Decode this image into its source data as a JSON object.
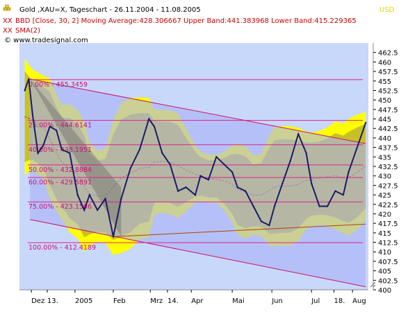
{
  "header": {
    "line1_icon": "gold-bars-icon",
    "line1": "Gold ,XAU=X, Tageschart - 26.11.2004 - 11.08.2005",
    "line2_icon": "indicator-x-icon",
    "line2": "BBD [Close, 30, 2] Moving Average:428.306667 Upper Band:441.383968 Lower Band:415.229365",
    "line3_icon": "indicator-x-icon",
    "line3": "SMA(2)",
    "line4": "© www.tradesignal.com",
    "currency": "USD"
  },
  "colors": {
    "plot_bg": "#c8d8fa",
    "channel_fill": "#a9b1f6",
    "band_fill": "#c8c02a",
    "band_outer": "#ffff00",
    "price_line": "#1a1a66",
    "fib_line": "#dd2288",
    "fib_text": "#cc1177",
    "header_red": "#cc0000",
    "usd": "#d8d800",
    "ma_line": "#993322"
  },
  "chart_data": {
    "type": "line",
    "title": "Gold ,XAU=X, Tageschart - 26.11.2004 - 11.08.2005",
    "ylabel": "USD",
    "ylim": [
      400,
      465
    ],
    "yticks": [
      400,
      402.5,
      405,
      407.5,
      410,
      412.5,
      415,
      417.5,
      420,
      422.5,
      425,
      427.5,
      430,
      432.5,
      435,
      437.5,
      440,
      442.5,
      445,
      447.5,
      450,
      452.5,
      455,
      457.5,
      460,
      462.5
    ],
    "xlabels": [
      "Dez",
      "13.",
      "2005",
      "Feb",
      "Mrz",
      "14.",
      "Apr",
      "Mai",
      "Jun",
      "Jul",
      "18.",
      "Aug"
    ],
    "fib_levels": [
      {
        "label": "0.00% - 455.3459",
        "value": 455.3459
      },
      {
        "label": "25.00% - 444.6141",
        "value": 444.6141
      },
      {
        "label": "40.00% - 438.1951",
        "value": 438.1951
      },
      {
        "label": "50.00% - 432.8884",
        "value": 432.8884
      },
      {
        "label": "60.00% - 429.5891",
        "value": 429.5891
      },
      {
        "label": "75.00% - 423.1506",
        "value": 423.1506
      },
      {
        "label": "100.00% - 412.4189",
        "value": 412.4189
      }
    ],
    "series": [
      {
        "name": "Close",
        "x": [
          "2004-11-26",
          "2004-11-29",
          "2004-12-02",
          "2004-12-06",
          "2004-12-10",
          "2004-12-15",
          "2004-12-20",
          "2004-12-24",
          "2004-12-30",
          "2005-01-05",
          "2005-01-10",
          "2005-01-14",
          "2005-01-20",
          "2005-01-26",
          "2005-02-01",
          "2005-02-07",
          "2005-02-14",
          "2005-02-21",
          "2005-02-28",
          "2005-03-04",
          "2005-03-10",
          "2005-03-16",
          "2005-03-22",
          "2005-03-28",
          "2005-04-04",
          "2005-04-08",
          "2005-04-14",
          "2005-04-20",
          "2005-04-26",
          "2005-05-02",
          "2005-05-06",
          "2005-05-12",
          "2005-05-18",
          "2005-05-24",
          "2005-05-30",
          "2005-06-03",
          "2005-06-09",
          "2005-06-15",
          "2005-06-21",
          "2005-06-27",
          "2005-07-01",
          "2005-07-07",
          "2005-07-13",
          "2005-07-19",
          "2005-07-25",
          "2005-07-29",
          "2005-08-04",
          "2005-08-11"
        ],
        "values": [
          452.5,
          455.5,
          446,
          436,
          438,
          443,
          442,
          437,
          436,
          425,
          421,
          425,
          421,
          424,
          414,
          424,
          432,
          437,
          445,
          443,
          436,
          433,
          426,
          427,
          425,
          430,
          429,
          435,
          433,
          431,
          427,
          426,
          422,
          418,
          417,
          422,
          428,
          434,
          441,
          436,
          428,
          422,
          422,
          426,
          425,
          431,
          437,
          444
        ]
      }
    ]
  }
}
